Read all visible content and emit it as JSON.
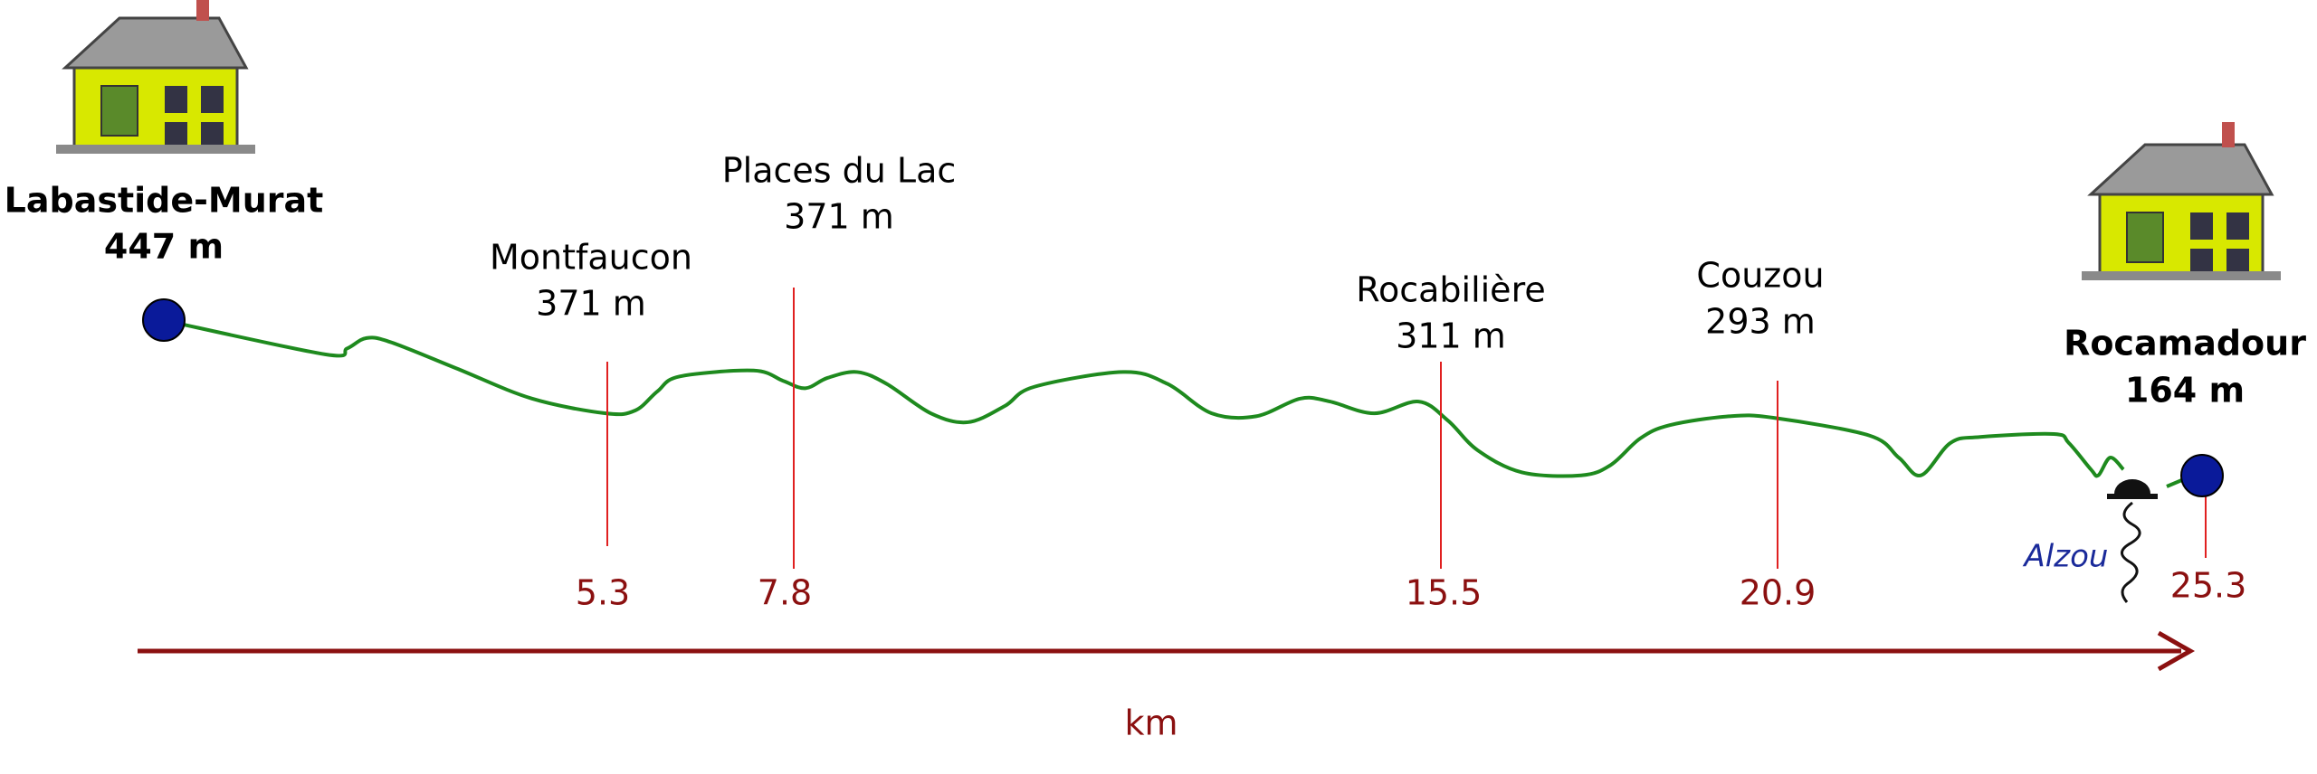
{
  "start": {
    "name": "Labastide-Murat",
    "elevation": "447 m"
  },
  "end": {
    "name": "Rocamadour",
    "elevation": "164 m",
    "km": "25.3"
  },
  "waypoints": [
    {
      "name": "Montfaucon",
      "elevation": "371 m",
      "km": "5.3"
    },
    {
      "name": "Places du Lac",
      "elevation": "371 m",
      "km": "7.8"
    },
    {
      "name": "Rocabilière",
      "elevation": "311 m",
      "km": "15.5"
    },
    {
      "name": "Couzou",
      "elevation": "293 m",
      "km": "20.9"
    }
  ],
  "river": "Alzou",
  "axis_label": "km"
}
